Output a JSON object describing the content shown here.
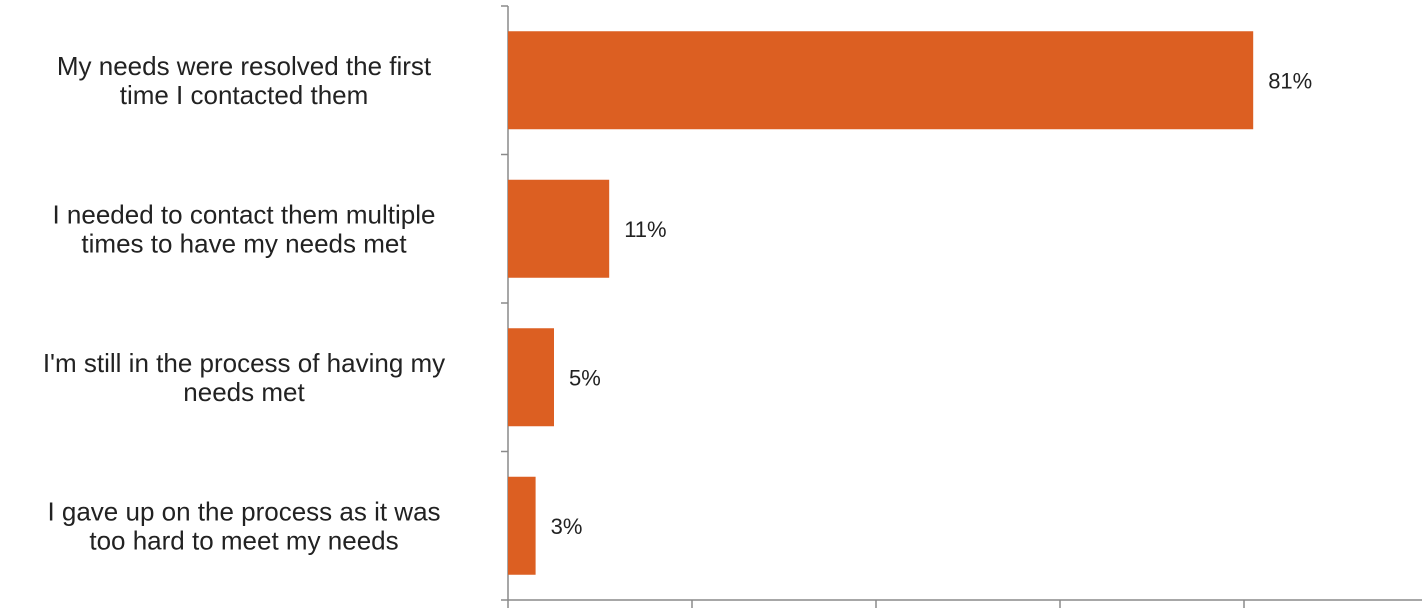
{
  "chart_data": {
    "type": "bar",
    "orientation": "horizontal",
    "categories": [
      [
        "My needs were resolved the first",
        "time I contacted them"
      ],
      [
        "I needed to contact them multiple",
        "times to have my needs met"
      ],
      [
        "I'm still in the process of having my",
        "needs met"
      ],
      [
        "I gave up on the process as it was",
        "too hard to meet my needs"
      ]
    ],
    "values": [
      81,
      11,
      5,
      3
    ],
    "data_labels": [
      "81%",
      "11%",
      "5%",
      "3%"
    ],
    "xlim": [
      0,
      100
    ],
    "bar_color": "#dc5f22",
    "grid": false,
    "legend": "none",
    "title": "",
    "xlabel": "",
    "ylabel": ""
  }
}
